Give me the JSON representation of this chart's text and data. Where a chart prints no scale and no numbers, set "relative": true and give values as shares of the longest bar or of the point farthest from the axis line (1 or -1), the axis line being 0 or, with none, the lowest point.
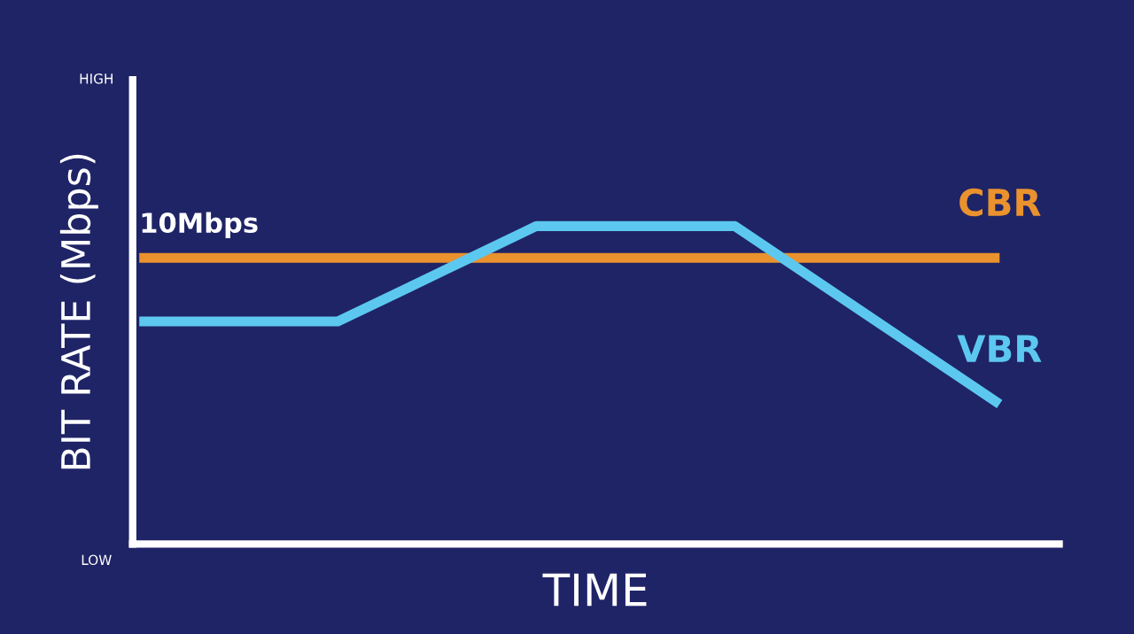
{
  "chart_data": {
    "type": "line",
    "relative": true,
    "xlabel": "TIME",
    "ylabel": "BIT RATE (Mbps)",
    "categories": [
      null,
      null,
      null,
      null,
      null,
      null,
      null,
      null,
      null,
      null,
      null,
      null,
      null,
      null
    ],
    "series": [
      {
        "name": "CBR",
        "color": "#ea922e",
        "values": [
          0.9,
          0.9,
          0.9,
          0.9,
          0.9,
          0.9,
          0.9,
          0.9,
          0.9,
          0.9,
          0.9,
          0.9,
          0.9,
          0.9
        ]
      },
      {
        "name": "VBR",
        "color": "#5cc8f0",
        "values": [
          0.7,
          0.7,
          0.7,
          0.7,
          0.8,
          0.9,
          1,
          1,
          1,
          1,
          0.86,
          0.72,
          0.58,
          0.44
        ]
      }
    ],
    "annotations": [
      "HIGH",
      "LOW",
      {
        "text": "10Mbps",
        "y": 0.9
      }
    ],
    "grid": false,
    "legend": false,
    "marker": "none",
    "line_style": "solid"
  }
}
